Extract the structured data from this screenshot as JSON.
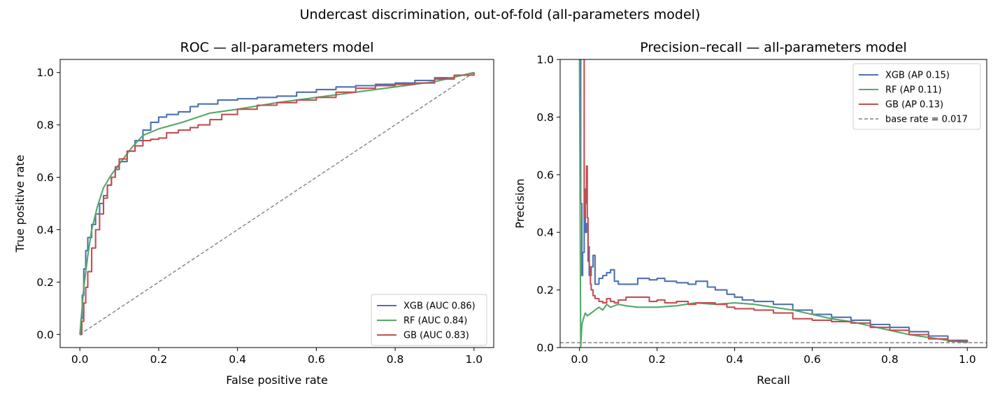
{
  "suptitle": "Undercast discrimination, out-of-fold (all-parameters model)",
  "colors": {
    "xgb": "#4c72b0",
    "rf": "#55a868",
    "gb": "#c44e52",
    "diag": "#808080"
  },
  "chart_data": [
    {
      "type": "line",
      "title": "ROC — all-parameters model",
      "xlabel": "False positive rate",
      "ylabel": "True positive rate",
      "xlim": [
        -0.05,
        1.05
      ],
      "ylim": [
        -0.05,
        1.05
      ],
      "xticks": [
        0.0,
        0.2,
        0.4,
        0.6,
        0.8,
        1.0
      ],
      "yticks": [
        0.0,
        0.2,
        0.4,
        0.6,
        0.8,
        1.0
      ],
      "xtick_labels": [
        "0.0",
        "0.2",
        "0.4",
        "0.6",
        "0.8",
        "1.0"
      ],
      "ytick_labels": [
        "0.0",
        "0.2",
        "0.4",
        "0.6",
        "0.8",
        "1.0"
      ],
      "grid": false,
      "legend_position": "lower-right",
      "series": [
        {
          "name": "XGB (AUC 0.86)",
          "color": "#4c72b0",
          "step": true,
          "x": [
            0.0,
            0.003,
            0.006,
            0.01,
            0.015,
            0.02,
            0.03,
            0.04,
            0.05,
            0.06,
            0.07,
            0.08,
            0.09,
            0.1,
            0.12,
            0.14,
            0.16,
            0.18,
            0.2,
            0.22,
            0.25,
            0.28,
            0.3,
            0.35,
            0.4,
            0.45,
            0.5,
            0.55,
            0.6,
            0.65,
            0.7,
            0.75,
            0.8,
            0.85,
            0.9,
            0.95,
            1.0
          ],
          "y": [
            0.0,
            0.06,
            0.15,
            0.25,
            0.32,
            0.37,
            0.42,
            0.46,
            0.5,
            0.53,
            0.57,
            0.6,
            0.63,
            0.66,
            0.7,
            0.74,
            0.78,
            0.81,
            0.83,
            0.84,
            0.85,
            0.87,
            0.88,
            0.895,
            0.9,
            0.905,
            0.91,
            0.925,
            0.935,
            0.945,
            0.95,
            0.955,
            0.96,
            0.97,
            0.98,
            0.99,
            1.0
          ]
        },
        {
          "name": "RF (AUC 0.84)",
          "color": "#55a868",
          "step": false,
          "x": [
            0.0,
            0.01,
            0.02,
            0.03,
            0.045,
            0.06,
            0.08,
            0.1,
            0.13,
            0.16,
            0.2,
            0.26,
            0.33,
            0.4,
            0.5,
            0.6,
            0.7,
            0.8,
            0.9,
            1.0
          ],
          "y": [
            0.0,
            0.18,
            0.3,
            0.4,
            0.49,
            0.56,
            0.61,
            0.65,
            0.71,
            0.76,
            0.785,
            0.81,
            0.845,
            0.86,
            0.885,
            0.905,
            0.925,
            0.945,
            0.965,
            1.0
          ]
        },
        {
          "name": "GB (AUC 0.83)",
          "color": "#c44e52",
          "step": true,
          "x": [
            0.0,
            0.005,
            0.01,
            0.015,
            0.02,
            0.03,
            0.04,
            0.05,
            0.06,
            0.07,
            0.08,
            0.09,
            0.1,
            0.12,
            0.14,
            0.16,
            0.18,
            0.2,
            0.22,
            0.25,
            0.28,
            0.3,
            0.33,
            0.36,
            0.4,
            0.45,
            0.5,
            0.55,
            0.6,
            0.65,
            0.7,
            0.75,
            0.8,
            0.85,
            0.9,
            0.95,
            1.0
          ],
          "y": [
            0.0,
            0.05,
            0.12,
            0.18,
            0.24,
            0.33,
            0.4,
            0.46,
            0.52,
            0.57,
            0.6,
            0.64,
            0.67,
            0.7,
            0.72,
            0.74,
            0.745,
            0.75,
            0.77,
            0.78,
            0.79,
            0.8,
            0.82,
            0.84,
            0.86,
            0.875,
            0.885,
            0.895,
            0.905,
            0.925,
            0.94,
            0.95,
            0.955,
            0.96,
            0.975,
            0.99,
            1.0
          ]
        },
        {
          "name": "",
          "color": "#808080",
          "dashed": true,
          "step": false,
          "x": [
            0.0,
            1.0
          ],
          "y": [
            0.0,
            1.0
          ]
        }
      ]
    },
    {
      "type": "line",
      "title": "Precision–recall — all-parameters model",
      "xlabel": "Recall",
      "ylabel": "Precision",
      "xlim": [
        -0.05,
        1.05
      ],
      "ylim": [
        0.0,
        1.0
      ],
      "xticks": [
        0.0,
        0.2,
        0.4,
        0.6,
        0.8,
        1.0
      ],
      "yticks": [
        0.0,
        0.2,
        0.4,
        0.6,
        0.8,
        1.0
      ],
      "xtick_labels": [
        "0.0",
        "0.2",
        "0.4",
        "0.6",
        "0.8",
        "1.0"
      ],
      "ytick_labels": [
        "0.0",
        "0.2",
        "0.4",
        "0.6",
        "0.8",
        "1.0"
      ],
      "grid": false,
      "legend_position": "upper-right",
      "series": [
        {
          "name": "XGB (AP 0.15)",
          "color": "#4c72b0",
          "step": true,
          "x": [
            0.0,
            0.003,
            0.006,
            0.008,
            0.012,
            0.015,
            0.018,
            0.022,
            0.025,
            0.03,
            0.035,
            0.04,
            0.05,
            0.06,
            0.07,
            0.08,
            0.09,
            0.1,
            0.12,
            0.15,
            0.18,
            0.2,
            0.22,
            0.25,
            0.28,
            0.3,
            0.33,
            0.35,
            0.38,
            0.4,
            0.42,
            0.45,
            0.5,
            0.55,
            0.6,
            0.65,
            0.7,
            0.75,
            0.8,
            0.85,
            0.9,
            0.95,
            1.0
          ],
          "y": [
            1.0,
            0.5,
            0.25,
            0.33,
            0.5,
            0.4,
            0.43,
            0.3,
            0.25,
            0.28,
            0.32,
            0.22,
            0.24,
            0.25,
            0.26,
            0.27,
            0.23,
            0.22,
            0.22,
            0.24,
            0.235,
            0.24,
            0.23,
            0.225,
            0.22,
            0.23,
            0.21,
            0.2,
            0.185,
            0.175,
            0.165,
            0.16,
            0.15,
            0.13,
            0.115,
            0.105,
            0.095,
            0.08,
            0.07,
            0.055,
            0.04,
            0.025,
            0.017
          ]
        },
        {
          "name": "RF (AP 0.11)",
          "color": "#55a868",
          "step": false,
          "x": [
            0.0,
            0.003,
            0.006,
            0.01,
            0.015,
            0.02,
            0.03,
            0.04,
            0.05,
            0.06,
            0.07,
            0.08,
            0.1,
            0.12,
            0.15,
            0.2,
            0.25,
            0.3,
            0.35,
            0.4,
            0.45,
            0.5,
            0.55,
            0.6,
            0.65,
            0.7,
            0.75,
            0.8,
            0.85,
            0.9,
            0.95,
            1.0
          ],
          "y": [
            1.0,
            0.0,
            0.08,
            0.1,
            0.12,
            0.11,
            0.12,
            0.13,
            0.14,
            0.13,
            0.15,
            0.14,
            0.15,
            0.145,
            0.14,
            0.14,
            0.145,
            0.155,
            0.15,
            0.155,
            0.15,
            0.14,
            0.13,
            0.115,
            0.1,
            0.09,
            0.075,
            0.06,
            0.045,
            0.035,
            0.025,
            0.017
          ]
        },
        {
          "name": "GB (AP 0.13)",
          "color": "#c44e52",
          "step": true,
          "x": [
            0.01,
            0.012,
            0.014,
            0.016,
            0.018,
            0.02,
            0.022,
            0.025,
            0.028,
            0.03,
            0.035,
            0.04,
            0.05,
            0.06,
            0.07,
            0.08,
            0.09,
            0.1,
            0.12,
            0.15,
            0.18,
            0.2,
            0.22,
            0.25,
            0.28,
            0.3,
            0.33,
            0.35,
            0.38,
            0.4,
            0.45,
            0.5,
            0.55,
            0.6,
            0.65,
            0.7,
            0.75,
            0.8,
            0.85,
            0.9,
            0.95,
            1.0
          ],
          "y": [
            1.0,
            0.45,
            0.55,
            0.5,
            0.63,
            0.45,
            0.35,
            0.28,
            0.22,
            0.2,
            0.18,
            0.17,
            0.16,
            0.155,
            0.17,
            0.16,
            0.155,
            0.165,
            0.175,
            0.175,
            0.16,
            0.165,
            0.155,
            0.16,
            0.15,
            0.155,
            0.155,
            0.15,
            0.14,
            0.135,
            0.13,
            0.12,
            0.1,
            0.095,
            0.09,
            0.085,
            0.07,
            0.06,
            0.045,
            0.03,
            0.022,
            0.017
          ]
        },
        {
          "name": "base rate = 0.017",
          "color": "#808080",
          "dashed": true,
          "step": false,
          "x": [
            -0.05,
            1.05
          ],
          "y": [
            0.017,
            0.017
          ]
        }
      ]
    }
  ]
}
